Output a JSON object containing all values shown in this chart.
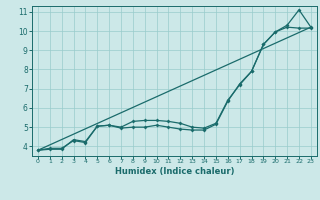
{
  "xlabel": "Humidex (Indice chaleur)",
  "bg_color": "#cce8e8",
  "grid_color": "#99cccc",
  "line_color": "#1a6b6b",
  "xlim": [
    -0.5,
    23.5
  ],
  "ylim": [
    3.5,
    11.3
  ],
  "xticks": [
    0,
    1,
    2,
    3,
    4,
    5,
    6,
    7,
    8,
    9,
    10,
    11,
    12,
    13,
    14,
    15,
    16,
    17,
    18,
    19,
    20,
    21,
    22,
    23
  ],
  "yticks": [
    4,
    5,
    6,
    7,
    8,
    9,
    10,
    11
  ],
  "line1_x": [
    0,
    1,
    2,
    3,
    4,
    5,
    6,
    7,
    8,
    9,
    10,
    11,
    12,
    13,
    14,
    15,
    16,
    17,
    18,
    19,
    20,
    21,
    22,
    23
  ],
  "line1_y": [
    3.8,
    3.9,
    3.9,
    4.3,
    4.2,
    5.05,
    5.1,
    5.0,
    5.3,
    5.35,
    5.35,
    5.3,
    5.2,
    5.0,
    4.95,
    5.2,
    6.4,
    7.2,
    7.9,
    9.3,
    9.95,
    10.3,
    11.1,
    10.2
  ],
  "line2_x": [
    0,
    1,
    2,
    3,
    4,
    5,
    6,
    7,
    8,
    9,
    10,
    11,
    12,
    13,
    14,
    15,
    16,
    17,
    18,
    19,
    20,
    21,
    22,
    23
  ],
  "line2_y": [
    3.8,
    3.85,
    3.85,
    4.35,
    4.25,
    5.05,
    5.1,
    4.95,
    5.0,
    5.0,
    5.1,
    5.0,
    4.9,
    4.85,
    4.85,
    5.15,
    6.35,
    7.25,
    7.9,
    9.3,
    9.95,
    10.2,
    10.15,
    10.15
  ],
  "line3_x": [
    0,
    23
  ],
  "line3_y": [
    3.8,
    10.2
  ]
}
